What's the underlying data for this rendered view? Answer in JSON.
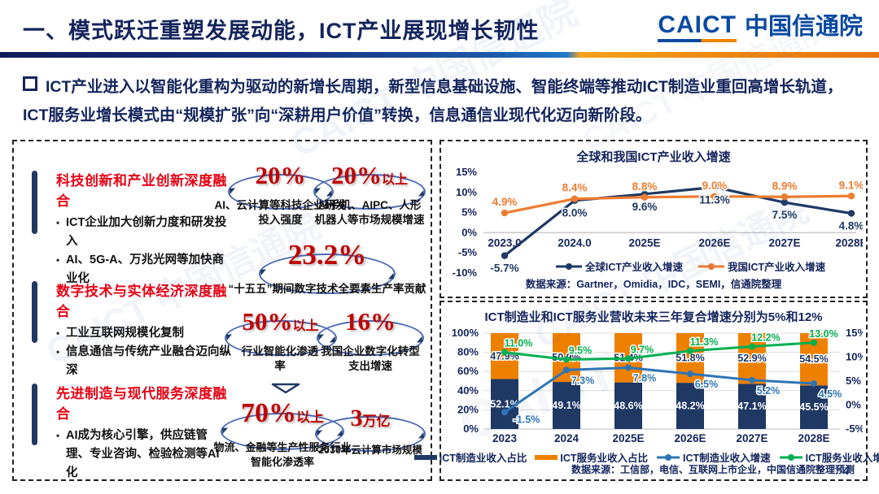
{
  "slide": {
    "title": "一、模式跃迁重塑发展动能，ICT产业展现增长韧性",
    "page_number": "4",
    "watermark": "CAICT 中国信通院"
  },
  "logo": {
    "abbr": "CAICT",
    "name": "中国信通院"
  },
  "intro": {
    "text": "ICT产业进入以智能化重构为驱动的新增长周期，新型信息基础设施、智能终端等推动ICT制造业重回高增长轨道，ICT服务业增长模式由“规模扩张”向“深耕用户价值”转换，信息通信业现代化迈向新阶段。"
  },
  "colors": {
    "navy": "#1f3864",
    "orange_line": "#ed7d31",
    "orange_bar": "#ee8000",
    "blue_line": "#2e75b6",
    "green_line": "#00b050",
    "red_header": "#e60012",
    "red_stat": "#c00000"
  },
  "left_panel": {
    "sections": [
      {
        "title": "科技创新和产业创新深度融合",
        "bullets": [
          "ICT企业加大创新力度和研发投入",
          "AI、5G-A、万兆光网等加快商业化"
        ]
      },
      {
        "title": "数字技术与实体经济深度融合",
        "bullets": [
          "工业互联网规模化复制",
          "信息通信与传统产业融合迈向纵深"
        ]
      },
      {
        "title": "先进制造与现代服务深度融合",
        "bullets": [
          "AI成为核心引擎，供应链管理、专业咨询、检验检测等AI化"
        ]
      }
    ],
    "stats": [
      {
        "value": "20%",
        "suffix": "",
        "caption": "AI、云计算等科技企业研发投入强度"
      },
      {
        "value": "20%",
        "suffix": "以上",
        "caption": "AI手机、AIPC、人形机器人等市场规模增速"
      },
      {
        "value": "23.2%",
        "suffix": "",
        "caption": "“十五五”期间数字技术全要素生产率贡献"
      },
      {
        "value": "50%",
        "suffix": "以上",
        "caption": "行业智能化渗透率"
      },
      {
        "value": "16%",
        "suffix": "",
        "caption": "我国企业数字化转型支出增速"
      },
      {
        "value": "70%",
        "suffix": "以上",
        "caption": "物流、金融等生产性服务行业智能化渗透率"
      },
      {
        "value": "3",
        "suffix": "万亿",
        "caption": "2030年云计算市场规模"
      }
    ]
  },
  "chart_data": [
    {
      "type": "line",
      "title": "全球和我国ICT产业收入增速",
      "categories": [
        "2023.0",
        "2024.0",
        "2025E",
        "2026E",
        "2027E",
        "2028E"
      ],
      "series": [
        {
          "name": "全球ICT产业收入增速",
          "color": "#1f3864",
          "label_pos": "below",
          "values": [
            -5.7,
            8.0,
            9.6,
            11.3,
            7.5,
            4.8
          ]
        },
        {
          "name": "我国ICT产业收入增速",
          "color": "#ed7d31",
          "label_pos": "above",
          "values": [
            4.9,
            8.4,
            8.8,
            9.0,
            8.9,
            9.1
          ]
        }
      ],
      "ylim": [
        -10,
        15
      ],
      "yticks": [
        "15%",
        "10%",
        "5%",
        "0%",
        "-5%",
        "-10%"
      ],
      "grid": "zero-line-only",
      "legend_position": "bottom",
      "source": "数据来源：Gartner，Omidia，IDC，SEMI，信通院整理"
    },
    {
      "type": "bar+line",
      "title": "ICT制造业和ICT服务业营收未来三年复合增速分别为5%和12%",
      "categories": [
        "2023",
        "2024",
        "2025E",
        "2026E",
        "2027E",
        "2028E"
      ],
      "bar_series": [
        {
          "name": "ICT制造业收入占比",
          "color": "#1f3864",
          "values": [
            52.1,
            49.1,
            48.6,
            48.2,
            47.1,
            45.5
          ]
        },
        {
          "name": "ICT服务业收入占比",
          "color": "#ee8000",
          "values": [
            47.9,
            50.9,
            51.4,
            51.8,
            52.9,
            54.5
          ]
        }
      ],
      "line_series": [
        {
          "name": "ICT制造业收入增速",
          "color": "#2e75b6",
          "label_pos": "below",
          "values": [
            -1.5,
            7.3,
            7.8,
            6.5,
            5.2,
            4.5
          ]
        },
        {
          "name": "ICT服务业收入增速",
          "color": "#00b050",
          "label_pos": "above",
          "values": [
            11.0,
            9.5,
            9.7,
            11.3,
            12.2,
            13.0
          ]
        }
      ],
      "left_ylim": [
        0,
        100
      ],
      "right_ylim": [
        -5,
        15
      ],
      "left_yticks": [
        "0%",
        "20%",
        "40%",
        "60%",
        "80%",
        "100%"
      ],
      "right_yticks": [
        "-5%",
        "0%",
        "5%",
        "10%",
        "15%"
      ],
      "grid": "horizontal",
      "legend_position": "bottom",
      "source": "数据来源：工信部，电信、互联网上市企业，中国信通院整理预测"
    }
  ]
}
